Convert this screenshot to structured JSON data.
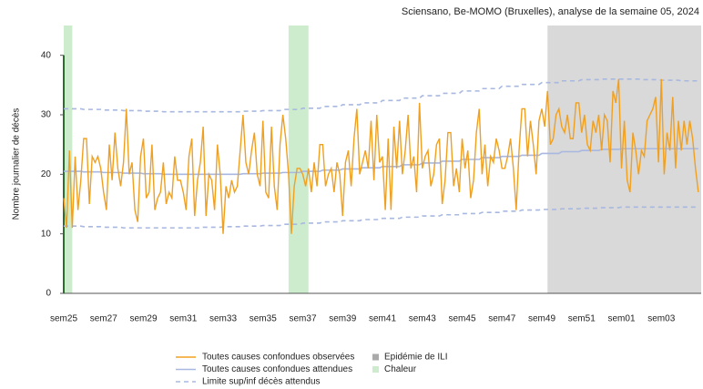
{
  "chart_data": {
    "type": "line",
    "title": "Sciensano, Be-MOMO (Bruxelles), analyse de la semaine 05, 2024",
    "y_label": "Nombre journalier de décès",
    "categories": [
      "sem25",
      null,
      null,
      null,
      null,
      null,
      null,
      null,
      null,
      null,
      null,
      null,
      null,
      null,
      "sem27",
      null,
      null,
      null,
      null,
      null,
      null,
      null,
      null,
      null,
      null,
      null,
      null,
      null,
      "sem29",
      null,
      null,
      null,
      null,
      null,
      null,
      null,
      null,
      null,
      null,
      null,
      null,
      null,
      "sem31",
      null,
      null,
      null,
      null,
      null,
      null,
      null,
      null,
      null,
      null,
      null,
      null,
      null,
      "sem33",
      null,
      null,
      null,
      null,
      null,
      null,
      null,
      null,
      null,
      null,
      null,
      null,
      null,
      "sem35",
      null,
      null,
      null,
      null,
      null,
      null,
      null,
      null,
      null,
      null,
      null,
      null,
      null,
      "sem37",
      null,
      null,
      null,
      null,
      null,
      null,
      null,
      null,
      null,
      null,
      null,
      null,
      null,
      "sem39",
      null,
      null,
      null,
      null,
      null,
      null,
      null,
      null,
      null,
      null,
      null,
      null,
      null,
      "sem41",
      null,
      null,
      null,
      null,
      null,
      null,
      null,
      null,
      null,
      null,
      null,
      null,
      null,
      "sem43",
      null,
      null,
      null,
      null,
      null,
      null,
      null,
      null,
      null,
      null,
      null,
      null,
      null,
      "sem45",
      null,
      null,
      null,
      null,
      null,
      null,
      null,
      null,
      null,
      null,
      null,
      null,
      null,
      "sem47",
      null,
      null,
      null,
      null,
      null,
      null,
      null,
      null,
      null,
      null,
      null,
      null,
      null,
      "sem49",
      null,
      null,
      null,
      null,
      null,
      null,
      null,
      null,
      null,
      null,
      null,
      null,
      null,
      "sem51",
      null,
      null,
      null,
      null,
      null,
      null,
      null,
      null,
      null,
      null,
      null,
      null,
      null,
      "sem01",
      null,
      null,
      null,
      null,
      null,
      null,
      null,
      null,
      null,
      null,
      null,
      null,
      null,
      "sem03",
      null,
      null,
      null,
      null,
      null,
      null,
      null,
      null,
      null,
      null,
      null,
      null,
      null
    ],
    "series": [
      {
        "name": "Toutes causes confondues observées",
        "color": "#f0a020",
        "values": [
          16,
          11,
          24,
          11,
          23,
          14,
          19,
          26,
          26,
          15,
          23,
          22,
          23,
          21,
          17,
          14,
          25,
          19,
          27,
          21,
          18,
          22,
          31,
          20,
          22,
          14,
          12,
          23,
          26,
          16,
          17,
          25,
          14,
          16,
          17,
          22,
          15,
          17,
          16,
          23,
          19,
          19,
          17,
          14,
          23,
          26,
          13,
          19,
          22,
          28,
          13,
          20,
          19,
          14,
          25,
          20,
          10,
          18,
          16,
          19,
          17,
          18,
          24,
          30,
          22,
          20,
          24,
          27,
          20,
          18,
          29,
          17,
          16,
          28,
          18,
          14,
          25,
          30,
          26,
          20,
          10,
          18,
          21,
          21,
          20,
          18,
          21,
          17,
          22,
          18,
          25,
          25,
          18,
          20,
          21,
          17,
          22,
          20,
          13,
          22,
          24,
          18,
          26,
          31,
          20,
          22,
          24,
          21,
          29,
          19,
          30,
          22,
          23,
          14,
          26,
          14,
          28,
          21,
          29,
          20,
          24,
          30,
          21,
          23,
          17,
          32,
          21,
          23,
          24,
          18,
          20,
          25,
          26,
          15,
          19,
          27,
          27,
          18,
          21,
          17,
          26,
          21,
          24,
          16,
          19,
          27,
          31,
          20,
          25,
          18,
          23,
          22,
          26,
          24,
          21,
          21,
          23,
          26,
          21,
          14,
          24,
          31,
          31,
          23,
          29,
          25,
          20,
          29,
          31,
          28,
          34,
          25,
          26,
          30,
          31,
          28,
          27,
          30,
          26,
          26,
          32,
          32,
          27,
          30,
          25,
          24,
          29,
          27,
          30,
          24,
          30,
          29,
          22,
          34,
          32,
          36,
          21,
          29,
          19,
          17,
          27,
          24,
          20,
          24,
          23,
          29,
          30,
          31,
          33,
          22,
          36,
          20,
          27,
          24,
          33,
          21,
          29,
          24,
          29,
          25,
          29,
          26,
          21,
          17
        ]
      },
      {
        "name": "Toutes causes confondues attendues",
        "color": "#a8b8e0",
        "values": [
          20.5,
          20.5,
          20.5,
          20.5,
          20.5,
          20.5,
          20.5,
          20.4,
          20.4,
          20.4,
          20.4,
          20.4,
          20.4,
          20.4,
          20.3,
          20.3,
          20.3,
          20.3,
          20.3,
          20.3,
          20.3,
          20.2,
          20.2,
          20.2,
          20.2,
          20.2,
          20.2,
          20.2,
          20.1,
          20.1,
          20.1,
          20.1,
          20.1,
          20.1,
          20.1,
          20,
          20,
          20,
          20,
          20,
          20,
          20,
          20,
          20,
          20,
          20,
          20,
          20,
          20,
          20,
          20,
          20,
          20,
          20,
          20,
          20,
          20,
          20,
          20,
          20,
          20,
          20,
          20,
          20.1,
          20.1,
          20.1,
          20.1,
          20.1,
          20.1,
          20.1,
          20.2,
          20.2,
          20.2,
          20.2,
          20.2,
          20.2,
          20.2,
          20.3,
          20.3,
          20.3,
          20.3,
          20.3,
          20.3,
          20.3,
          20.5,
          20.5,
          20.5,
          20.5,
          20.5,
          20.5,
          20.5,
          20.7,
          20.7,
          20.7,
          20.7,
          20.7,
          20.7,
          20.7,
          20.9,
          20.9,
          20.9,
          20.9,
          20.9,
          20.9,
          20.9,
          21.1,
          21.1,
          21.1,
          21.1,
          21.1,
          21.1,
          21.1,
          21.3,
          21.3,
          21.3,
          21.3,
          21.3,
          21.3,
          21.3,
          21.6,
          21.6,
          21.6,
          21.6,
          21.6,
          21.6,
          21.6,
          21.9,
          21.9,
          21.9,
          21.9,
          21.9,
          21.9,
          21.9,
          22.2,
          22.2,
          22.2,
          22.2,
          22.2,
          22.2,
          22.2,
          22.5,
          22.5,
          22.5,
          22.5,
          22.5,
          22.5,
          22.5,
          22.8,
          22.8,
          22.8,
          22.8,
          22.8,
          22.8,
          22.8,
          23,
          23,
          23,
          23,
          23,
          23,
          23,
          23.2,
          23.2,
          23.2,
          23.2,
          23.2,
          23.2,
          23.2,
          23.5,
          23.5,
          23.5,
          23.5,
          23.5,
          23.5,
          23.5,
          23.8,
          23.8,
          23.8,
          23.8,
          23.8,
          23.8,
          23.8,
          24,
          24,
          24,
          24,
          24,
          24,
          24,
          24.2,
          24.2,
          24.2,
          24.2,
          24.2,
          24.2,
          24.2,
          24.3,
          24.3,
          24.3,
          24.3,
          24.3,
          24.3,
          24.3,
          24.3,
          24.3,
          24.3,
          24.3,
          24.3,
          24.3,
          24.3,
          24.3,
          24.3,
          24.3,
          24.3,
          24.3,
          24.3,
          24.3,
          24.3,
          24.3,
          24.3,
          24.3,
          24.3,
          24.3,
          24.3
        ]
      },
      {
        "name": "Limite sup/inf décès attendus",
        "color": "#a8b8e0",
        "dashed": true,
        "values": [
          31,
          31,
          31,
          31,
          31,
          31,
          31,
          30.9,
          30.9,
          30.9,
          30.9,
          30.9,
          30.9,
          30.9,
          30.8,
          30.8,
          30.8,
          30.8,
          30.8,
          30.8,
          30.8,
          30.7,
          30.7,
          30.7,
          30.7,
          30.7,
          30.7,
          30.7,
          30.6,
          30.6,
          30.6,
          30.6,
          30.6,
          30.6,
          30.6,
          30.5,
          30.5,
          30.5,
          30.5,
          30.5,
          30.5,
          30.5,
          30.5,
          30.5,
          30.5,
          30.5,
          30.5,
          30.5,
          30.5,
          30.5,
          30.5,
          30.5,
          30.5,
          30.5,
          30.5,
          30.5,
          30.5,
          30.5,
          30.5,
          30.5,
          30.5,
          30.5,
          30.5,
          30.6,
          30.6,
          30.6,
          30.6,
          30.6,
          30.6,
          30.6,
          30.7,
          30.7,
          30.7,
          30.7,
          30.7,
          30.7,
          30.7,
          30.9,
          30.9,
          30.9,
          30.9,
          30.9,
          30.9,
          30.9,
          31.1,
          31.1,
          31.1,
          31.1,
          31.1,
          31.1,
          31.1,
          31.4,
          31.4,
          31.4,
          31.4,
          31.4,
          31.4,
          31.4,
          31.7,
          31.7,
          31.7,
          31.7,
          31.7,
          31.7,
          31.7,
          32,
          32,
          32,
          32,
          32,
          32,
          32,
          32.4,
          32.4,
          32.4,
          32.4,
          32.4,
          32.4,
          32.4,
          32.8,
          32.8,
          32.8,
          32.8,
          32.8,
          32.8,
          32.8,
          33.2,
          33.2,
          33.2,
          33.2,
          33.2,
          33.2,
          33.2,
          33.6,
          33.6,
          33.6,
          33.6,
          33.6,
          33.6,
          33.6,
          34,
          34,
          34,
          34,
          34,
          34,
          34,
          34.4,
          34.4,
          34.4,
          34.4,
          34.4,
          34.4,
          34.4,
          34.8,
          34.8,
          34.8,
          34.8,
          34.8,
          34.8,
          34.8,
          35.1,
          35.1,
          35.1,
          35.1,
          35.1,
          35.1,
          35.1,
          35.4,
          35.4,
          35.4,
          35.4,
          35.4,
          35.4,
          35.4,
          35.7,
          35.7,
          35.7,
          35.7,
          35.7,
          35.7,
          35.7,
          35.9,
          35.9,
          35.9,
          35.9,
          35.9,
          35.9,
          35.9,
          36,
          36,
          36,
          36,
          36,
          36,
          36,
          36,
          36,
          36,
          36,
          36,
          36,
          36,
          35.9,
          35.9,
          35.9,
          35.9,
          35.9,
          35.9,
          35.9,
          35.8,
          35.8,
          35.8,
          35.8,
          35.8,
          35.8,
          35.8,
          35.7,
          35.7,
          35.7,
          35.7,
          35.7,
          35.7,
          35.7
        ],
        "lower": [
          11.3,
          11.3,
          11.3,
          11.3,
          11.3,
          11.3,
          11.3,
          11.2,
          11.2,
          11.2,
          11.2,
          11.2,
          11.2,
          11.2,
          11.1,
          11.1,
          11.1,
          11.1,
          11.1,
          11.1,
          11.1,
          11,
          11,
          11,
          11,
          11,
          11,
          11,
          11,
          11,
          11,
          11,
          11,
          11,
          11,
          11,
          11,
          11,
          11,
          11,
          11,
          11,
          11,
          11,
          11,
          11,
          11,
          11,
          11,
          11.1,
          11.1,
          11.1,
          11.1,
          11.1,
          11.1,
          11.1,
          11.2,
          11.2,
          11.2,
          11.2,
          11.2,
          11.2,
          11.2,
          11.3,
          11.3,
          11.3,
          11.3,
          11.3,
          11.3,
          11.3,
          11.4,
          11.4,
          11.4,
          11.4,
          11.4,
          11.4,
          11.4,
          11.6,
          11.6,
          11.6,
          11.6,
          11.6,
          11.6,
          11.6,
          11.8,
          11.8,
          11.8,
          11.8,
          11.8,
          11.8,
          11.8,
          12,
          12,
          12,
          12,
          12,
          12,
          12,
          12.2,
          12.2,
          12.2,
          12.2,
          12.2,
          12.2,
          12.2,
          12.4,
          12.4,
          12.4,
          12.4,
          12.4,
          12.4,
          12.4,
          12.6,
          12.6,
          12.6,
          12.6,
          12.6,
          12.6,
          12.6,
          12.8,
          12.8,
          12.8,
          12.8,
          12.8,
          12.8,
          12.8,
          13,
          13,
          13,
          13,
          13,
          13,
          13,
          13.2,
          13.2,
          13.2,
          13.2,
          13.2,
          13.2,
          13.2,
          13.4,
          13.4,
          13.4,
          13.4,
          13.4,
          13.4,
          13.4,
          13.6,
          13.6,
          13.6,
          13.6,
          13.6,
          13.6,
          13.6,
          13.8,
          13.8,
          13.8,
          13.8,
          13.8,
          13.8,
          13.8,
          14,
          14,
          14,
          14,
          14,
          14,
          14,
          14.1,
          14.1,
          14.1,
          14.1,
          14.1,
          14.1,
          14.1,
          14.2,
          14.2,
          14.2,
          14.2,
          14.2,
          14.2,
          14.2,
          14.3,
          14.3,
          14.3,
          14.3,
          14.3,
          14.3,
          14.3,
          14.4,
          14.4,
          14.4,
          14.4,
          14.4,
          14.4,
          14.4,
          14.5,
          14.5,
          14.5,
          14.5,
          14.5,
          14.5,
          14.5,
          14.5,
          14.5,
          14.5,
          14.5,
          14.5,
          14.5,
          14.5,
          14.5,
          14.5,
          14.5,
          14.5,
          14.5,
          14.5,
          14.5,
          14.5,
          14.5,
          14.5,
          14.5,
          14.5,
          14.5,
          14.5
        ]
      }
    ],
    "shading": [
      {
        "name": "Epidémie de ILI",
        "color": "#d9d9d9",
        "ranges": [
          [
            170,
            224
          ]
        ]
      },
      {
        "name": "Chaleur",
        "color": "#cdeccd",
        "ranges": [
          [
            0,
            3
          ],
          [
            79,
            86
          ]
        ]
      }
    ],
    "ylim": [
      0,
      45
    ],
    "yticks": [
      0,
      10,
      20,
      30,
      40
    ],
    "grid": false
  }
}
